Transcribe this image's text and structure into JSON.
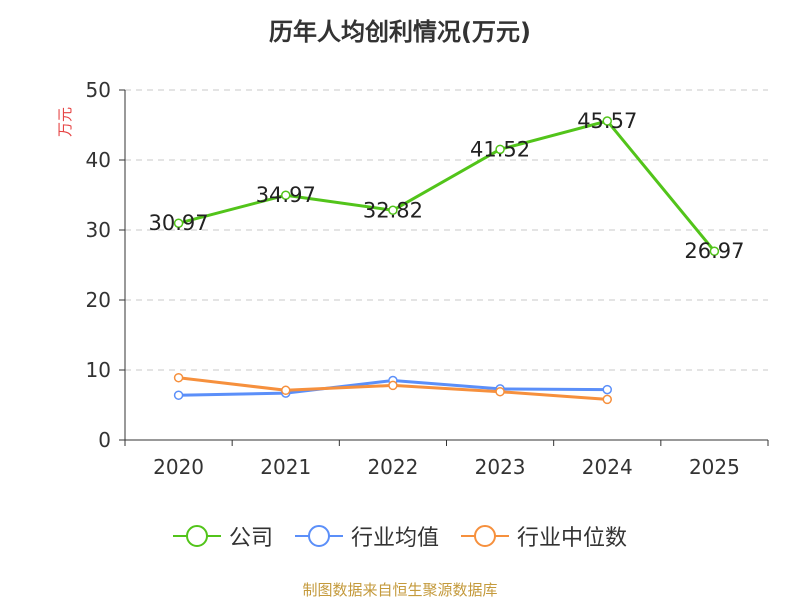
{
  "chart_data": {
    "type": "line",
    "title": "历年人均创利情况(万元)",
    "ylabel": "万元",
    "xlabel": "",
    "categories": [
      "2020",
      "2021",
      "2022",
      "2023",
      "2024",
      "2025"
    ],
    "ylim": [
      0,
      50
    ],
    "yticks": [
      0,
      10,
      20,
      30,
      40,
      50
    ],
    "grid": true,
    "legend_position": "bottom",
    "series": [
      {
        "name": "公司",
        "color": "#52c41a",
        "values": [
          30.97,
          34.97,
          32.82,
          41.52,
          45.57,
          26.97
        ],
        "labels": [
          "30.97",
          "34.97",
          "32.82",
          "41.52",
          "45.57",
          "26.97"
        ]
      },
      {
        "name": "行业均值",
        "color": "#5b8ff9",
        "values": [
          6.4,
          6.7,
          8.5,
          7.3,
          7.2,
          null
        ]
      },
      {
        "name": "行业中位数",
        "color": "#f6903d",
        "values": [
          8.9,
          7.1,
          7.8,
          6.9,
          5.8,
          null
        ]
      }
    ]
  },
  "legend": [
    "公司",
    "行业均值",
    "行业中位数"
  ],
  "footer": "制图数据来自恒生聚源数据库"
}
